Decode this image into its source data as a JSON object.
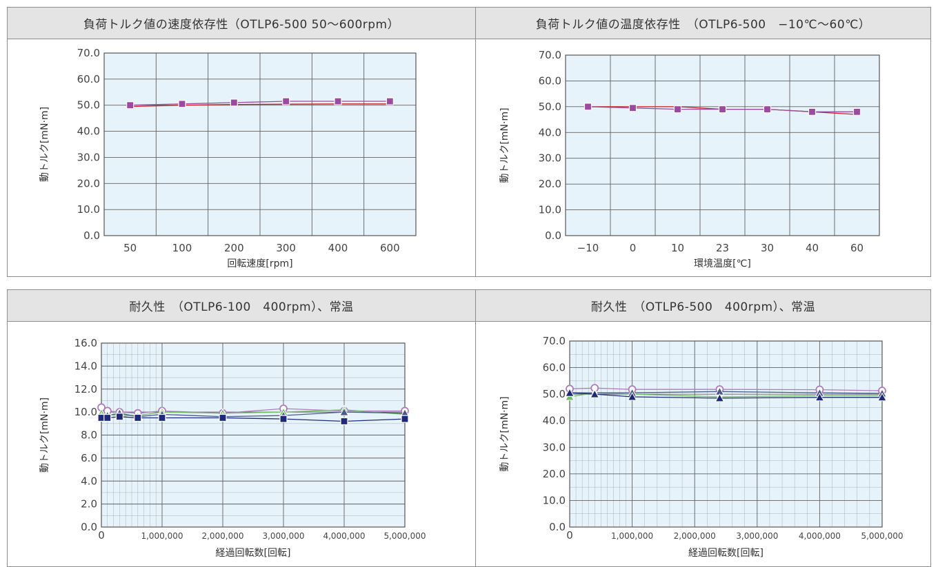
{
  "chart_data": [
    {
      "type": "line",
      "title": "負荷トルク値の速度依存性（OTLP6-500 50〜600rpm）",
      "xlabel": "回転速度[rpm]",
      "ylabel": "動トルク[mN·m]",
      "categories": [
        "50",
        "100",
        "200",
        "300",
        "400",
        "600"
      ],
      "ylim": [
        0,
        70
      ],
      "yticks": [
        "0.0",
        "10.0",
        "20.0",
        "30.0",
        "40.0",
        "50.0",
        "60.0",
        "70.0"
      ],
      "grid": true,
      "series": [
        {
          "color": "#cc2222",
          "marker": "none",
          "values": [
            49.5,
            50.0,
            50.3,
            50.4,
            50.5,
            50.5
          ]
        },
        {
          "color": "#9b4a9e",
          "marker": "square",
          "values": [
            50.0,
            50.5,
            51.0,
            51.5,
            51.5,
            51.5
          ]
        }
      ]
    },
    {
      "type": "line",
      "title": "負荷トルク値の温度依存性　（OTLP6-500　−10℃〜60℃）",
      "xlabel": "環境温度[℃]",
      "ylabel": "動トルク[mN·m]",
      "categories": [
        "−10",
        "0",
        "10",
        "23",
        "30",
        "40",
        "60"
      ],
      "ylim": [
        0,
        70
      ],
      "yticks": [
        "0.0",
        "10.0",
        "20.0",
        "30.0",
        "40.0",
        "50.0",
        "60.0",
        "70.0"
      ],
      "grid": true,
      "series": [
        {
          "color": "#cc2222",
          "marker": "none",
          "values": [
            50.0,
            50.0,
            50.0,
            49.0,
            49.0,
            48.0,
            47.0
          ]
        },
        {
          "color": "#9b4a9e",
          "marker": "square",
          "values": [
            50.0,
            49.5,
            49.0,
            49.0,
            49.0,
            48.0,
            48.0
          ]
        }
      ]
    },
    {
      "type": "line",
      "title": "耐久性　（OTLP6-100　400rpm）、常温",
      "xlabel": "経過回転数[回転]",
      "ylabel": "動トルク[mN·m]",
      "x": [
        0,
        100000,
        300000,
        600000,
        1000000,
        2000000,
        3000000,
        4000000,
        5000000
      ],
      "xlim": [
        0,
        5000000
      ],
      "xticks": [
        "0",
        "1,000,000",
        "2,000,000",
        "3,000,000",
        "4,000,000",
        "5,000,000"
      ],
      "ylim": [
        0,
        16
      ],
      "yticks": [
        "0.0",
        "2.0",
        "4.0",
        "6.0",
        "8.0",
        "10.0",
        "12.0",
        "14.0",
        "16.0"
      ],
      "grid": true,
      "series": [
        {
          "color": "#b07ac0",
          "marker": "circle",
          "values": [
            10.4,
            10.1,
            10.0,
            9.9,
            10.1,
            9.9,
            10.3,
            10.1,
            10.1
          ]
        },
        {
          "color": "#6fbf60",
          "marker": "triangle",
          "values": [
            9.9,
            9.8,
            9.7,
            9.7,
            10.0,
            9.9,
            10.0,
            10.2,
            9.8
          ]
        },
        {
          "color": "#4a5a8a",
          "marker": "triangle",
          "values": [
            9.6,
            9.7,
            9.9,
            9.6,
            9.8,
            9.6,
            9.7,
            10.0,
            9.9
          ]
        },
        {
          "color": "#1e2a78",
          "marker": "square",
          "values": [
            9.5,
            9.5,
            9.6,
            9.5,
            9.5,
            9.5,
            9.4,
            9.2,
            9.4
          ]
        }
      ]
    },
    {
      "type": "line",
      "title": "耐久性　（OTLP6-500　400rpm）、常温",
      "xlabel": "経過回転数[回転]",
      "ylabel": "動トルク[mN·m]",
      "x": [
        0,
        400000,
        1000000,
        2400000,
        4000000,
        5000000
      ],
      "xlim": [
        0,
        5000000
      ],
      "xticks": [
        "0",
        "1,000,000",
        "2,000,000",
        "3,000,000",
        "4,000,000",
        "5,000,000"
      ],
      "ylim": [
        0,
        70
      ],
      "yticks": [
        "0.0",
        "10.0",
        "20.0",
        "30.0",
        "40.0",
        "50.0",
        "60.0",
        "70.0"
      ],
      "grid": true,
      "series": [
        {
          "color": "#b07ac0",
          "marker": "circle",
          "values": [
            52.0,
            52.3,
            51.8,
            51.8,
            51.7,
            51.3
          ]
        },
        {
          "color": "#6fbf60",
          "marker": "triangle",
          "values": [
            49.0,
            50.5,
            50.0,
            49.0,
            49.5,
            49.5
          ]
        },
        {
          "color": "#4a5a8a",
          "marker": "triangle",
          "values": [
            50.5,
            50.5,
            50.5,
            51.0,
            50.5,
            50.3
          ]
        },
        {
          "color": "#1e2a78",
          "marker": "triangle",
          "values": [
            50.5,
            50.0,
            49.0,
            48.5,
            48.8,
            48.8
          ]
        }
      ]
    }
  ]
}
